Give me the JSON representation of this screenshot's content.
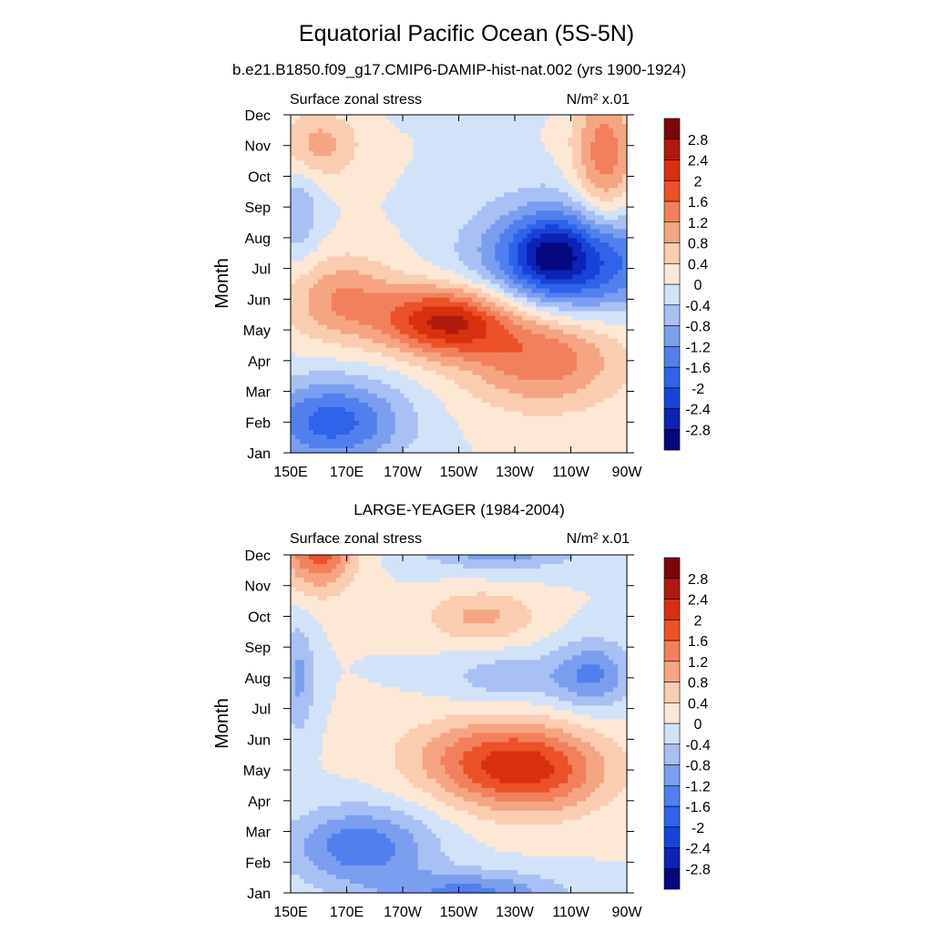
{
  "title": "Equatorial Pacific Ocean (5S-5N)",
  "colorscale": {
    "levels": [
      "-2.8",
      "-2.4",
      "-2",
      "-1.6",
      "-1.2",
      "-0.8",
      "-0.4",
      "0",
      "0.4",
      "0.8",
      "1.2",
      "1.6",
      "2",
      "2.4",
      "2.8"
    ],
    "colors": [
      "#06087e",
      "#0c23b5",
      "#1743d8",
      "#2e63ea",
      "#5180ee",
      "#7b9eef",
      "#a8c0f3",
      "#d2e3f9",
      "#fde8d6",
      "#fbcdb0",
      "#f5a582",
      "#f2805c",
      "#ec5128",
      "#d8300f",
      "#b01a0c",
      "#7d0606"
    ]
  },
  "chart_data": [
    {
      "type": "heatmap",
      "title": "b.e21.B1850.f09_g17.CMIP6-DAMIP-hist-nat.002 (yrs 1900-1924)",
      "left_label": "Surface zonal stress",
      "right_label": "N/m² x.01",
      "xlabel": "",
      "ylabel": "Month",
      "xticks": [
        "150E",
        "170E",
        "170W",
        "150W",
        "130W",
        "110W",
        "90W"
      ],
      "yticks": [
        "Jan",
        "Feb",
        "Mar",
        "Apr",
        "May",
        "Jun",
        "Jul",
        "Aug",
        "Sep",
        "Oct",
        "Nov",
        "Dec"
      ],
      "xlim_deg_east": [
        150,
        270
      ],
      "features": [
        {
          "x": 262,
          "y": 9.5,
          "sx": 8,
          "sy": 1.8,
          "a": 1.5
        },
        {
          "x": 160,
          "y": 10.0,
          "sx": 10,
          "sy": 0.8,
          "a": 1.0
        },
        {
          "x": 215,
          "y": 11.6,
          "sx": 15,
          "sy": 0.45,
          "a": -0.9
        },
        {
          "x": 250,
          "y": 6.3,
          "sx": 22,
          "sy": 1.3,
          "a": -2.6
        },
        {
          "x": 242,
          "y": 6.4,
          "sx": 8,
          "sy": 0.7,
          "a": -0.8
        },
        {
          "x": 205,
          "y": 4.3,
          "sx": 16,
          "sy": 0.8,
          "a": 2.4
        },
        {
          "x": 240,
          "y": 3.2,
          "sx": 20,
          "sy": 1.2,
          "a": 1.6
        },
        {
          "x": 168,
          "y": 5.0,
          "sx": 14,
          "sy": 1.0,
          "a": 1.2
        },
        {
          "x": 165,
          "y": 1.0,
          "sx": 18,
          "sy": 1.0,
          "a": -1.8
        },
        {
          "x": 153,
          "y": 7.8,
          "sx": 6,
          "sy": 1.2,
          "a": -0.7
        }
      ]
    },
    {
      "type": "heatmap",
      "title": "LARGE-YEAGER (1984-2004)",
      "left_label": "Surface zonal stress",
      "right_label": "N/m² x.01",
      "xlabel": "",
      "ylabel": "Month",
      "xticks": [
        "150E",
        "170E",
        "170W",
        "150W",
        "130W",
        "110W",
        "90W"
      ],
      "yticks": [
        "Jan",
        "Feb",
        "Mar",
        "Apr",
        "May",
        "Jun",
        "Jul",
        "Aug",
        "Sep",
        "Oct",
        "Nov",
        "Dec"
      ],
      "xlim_deg_east": [
        150,
        270
      ],
      "features": [
        {
          "x": 160,
          "y": 11.3,
          "sx": 9,
          "sy": 1.0,
          "a": 1.9
        },
        {
          "x": 225,
          "y": 11.5,
          "sx": 20,
          "sy": 0.6,
          "a": -1.5
        },
        {
          "x": 218,
          "y": 9.0,
          "sx": 14,
          "sy": 0.6,
          "a": 0.9
        },
        {
          "x": 258,
          "y": 7.1,
          "sx": 10,
          "sy": 0.8,
          "a": -1.2
        },
        {
          "x": 228,
          "y": 7.0,
          "sx": 16,
          "sy": 0.55,
          "a": -0.7
        },
        {
          "x": 153,
          "y": 7.0,
          "sx": 4,
          "sy": 1.3,
          "a": -0.9
        },
        {
          "x": 235,
          "y": 4.0,
          "sx": 20,
          "sy": 1.0,
          "a": 2.0
        },
        {
          "x": 212,
          "y": 4.5,
          "sx": 20,
          "sy": 0.9,
          "a": 0.7
        },
        {
          "x": 175,
          "y": 1.5,
          "sx": 18,
          "sy": 0.9,
          "a": -1.5
        },
        {
          "x": 215,
          "y": 0.0,
          "sx": 22,
          "sy": 0.5,
          "a": -1.3
        }
      ]
    }
  ]
}
